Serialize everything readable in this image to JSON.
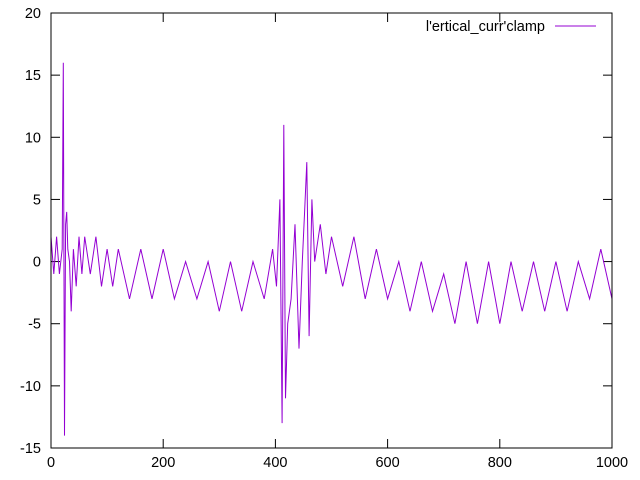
{
  "chart_data": {
    "type": "line",
    "title": "",
    "xlabel": "",
    "ylabel": "",
    "xlim": [
      0,
      1000
    ],
    "ylim": [
      -15,
      20
    ],
    "xticks": [
      0,
      200,
      400,
      600,
      800,
      1000
    ],
    "yticks": [
      -15,
      -10,
      -5,
      0,
      5,
      10,
      15,
      20
    ],
    "grid": false,
    "legend": "top-right",
    "series": [
      {
        "name": "l'ertical_curr'clamp",
        "color": "#9400d3",
        "x": [
          0,
          5,
          10,
          15,
          20,
          22,
          24,
          26,
          28,
          30,
          33,
          36,
          40,
          45,
          50,
          55,
          60,
          70,
          80,
          90,
          100,
          110,
          120,
          140,
          160,
          180,
          200,
          220,
          240,
          260,
          280,
          300,
          320,
          340,
          360,
          380,
          395,
          402,
          408,
          412,
          415,
          418,
          422,
          428,
          435,
          442,
          448,
          452,
          456,
          460,
          465,
          470,
          480,
          490,
          500,
          520,
          540,
          560,
          580,
          600,
          620,
          640,
          660,
          680,
          700,
          720,
          740,
          760,
          780,
          800,
          820,
          840,
          860,
          880,
          900,
          920,
          940,
          960,
          980,
          1000
        ],
        "y": [
          2,
          -1,
          2,
          -1,
          1,
          16,
          -14,
          3,
          4,
          1,
          0,
          -4,
          1,
          -2,
          2,
          -1,
          2,
          -1,
          2,
          -2,
          1,
          -2,
          1,
          -3,
          1,
          -3,
          1,
          -3,
          0,
          -3,
          0,
          -4,
          0,
          -4,
          0,
          -3,
          1,
          -2,
          5,
          -13,
          11,
          -11,
          -5,
          -3,
          3,
          -7,
          0,
          4,
          8,
          -6,
          5,
          0,
          3,
          -1,
          2,
          -2,
          2,
          -3,
          1,
          -3,
          0,
          -4,
          0,
          -4,
          -1,
          -5,
          0,
          -5,
          0,
          -5,
          0,
          -4,
          0,
          -4,
          0,
          -4,
          0,
          -3,
          1,
          -3
        ]
      }
    ]
  }
}
